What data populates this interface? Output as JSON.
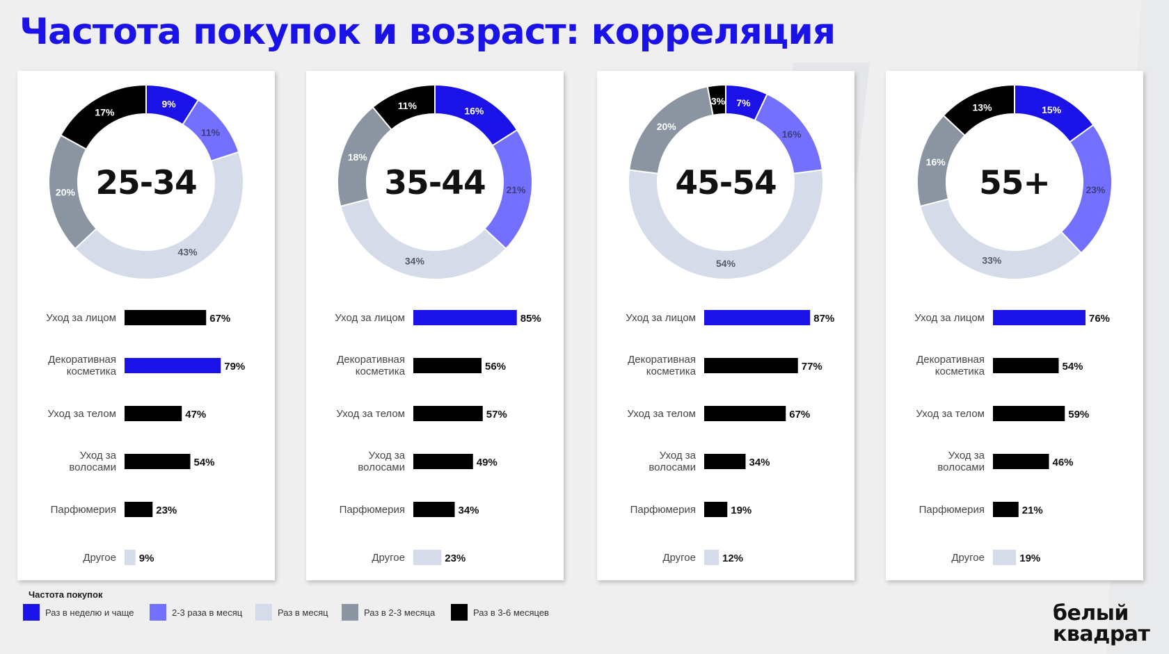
{
  "title": "Частота покупок и возраст: корреляция",
  "colors": {
    "weekly": "#1a12e6",
    "monthly_2_3": "#7470ff",
    "monthly": "#d5dbe8",
    "months_2_3": "#8b95a2",
    "months_3_6": "#000000"
  },
  "chart_data": [
    {
      "type": "donut",
      "center_label": "25-34",
      "slices": [
        {
          "key": "weekly",
          "value": 9,
          "label": "9%"
        },
        {
          "key": "monthly_2_3",
          "value": 11,
          "label": "11%"
        },
        {
          "key": "monthly",
          "value": 43,
          "label": "43%"
        },
        {
          "key": "months_2_3",
          "value": 20,
          "label": "20%"
        },
        {
          "key": "months_3_6",
          "value": 17,
          "label": "17%"
        }
      ],
      "bars": [
        {
          "category": [
            "Уход за лицом"
          ],
          "value": 67,
          "label": "67%",
          "color": "#000000"
        },
        {
          "category": [
            "Декоративная",
            "косметика"
          ],
          "value": 79,
          "label": "79%",
          "color": "#1a12e6"
        },
        {
          "category": [
            "Уход за телом"
          ],
          "value": 47,
          "label": "47%",
          "color": "#000000"
        },
        {
          "category": [
            "Уход за",
            "волосами"
          ],
          "value": 54,
          "label": "54%",
          "color": "#000000"
        },
        {
          "category": [
            "Парфюмерия"
          ],
          "value": 23,
          "label": "23%",
          "color": "#000000"
        },
        {
          "category": [
            "Другое"
          ],
          "value": 9,
          "label": "9%",
          "color": "#d5dbe8"
        }
      ]
    },
    {
      "type": "donut",
      "center_label": "35-44",
      "slices": [
        {
          "key": "weekly",
          "value": 16,
          "label": "16%"
        },
        {
          "key": "monthly_2_3",
          "value": 21,
          "label": "21%"
        },
        {
          "key": "monthly",
          "value": 34,
          "label": "34%"
        },
        {
          "key": "months_2_3",
          "value": 18,
          "label": "18%"
        },
        {
          "key": "months_3_6",
          "value": 11,
          "label": "11%"
        }
      ],
      "bars": [
        {
          "category": [
            "Уход за лицом"
          ],
          "value": 85,
          "label": "85%",
          "color": "#1a12e6"
        },
        {
          "category": [
            "Декоративная",
            "косметика"
          ],
          "value": 56,
          "label": "56%",
          "color": "#000000"
        },
        {
          "category": [
            "Уход за телом"
          ],
          "value": 57,
          "label": "57%",
          "color": "#000000"
        },
        {
          "category": [
            "Уход за",
            "волосами"
          ],
          "value": 49,
          "label": "49%",
          "color": "#000000"
        },
        {
          "category": [
            "Парфюмерия"
          ],
          "value": 34,
          "label": "34%",
          "color": "#000000"
        },
        {
          "category": [
            "Другое"
          ],
          "value": 23,
          "label": "23%",
          "color": "#d5dbe8"
        }
      ]
    },
    {
      "type": "donut",
      "center_label": "45-54",
      "slices": [
        {
          "key": "weekly",
          "value": 7,
          "label": "7%"
        },
        {
          "key": "monthly_2_3",
          "value": 16,
          "label": "16%"
        },
        {
          "key": "monthly",
          "value": 54,
          "label": "54%"
        },
        {
          "key": "months_2_3",
          "value": 20,
          "label": "20%"
        },
        {
          "key": "months_3_6",
          "value": 3,
          "label": "3%"
        }
      ],
      "bars": [
        {
          "category": [
            "Уход за лицом"
          ],
          "value": 87,
          "label": "87%",
          "color": "#1a12e6"
        },
        {
          "category": [
            "Декоративная",
            "косметика"
          ],
          "value": 77,
          "label": "77%",
          "color": "#000000"
        },
        {
          "category": [
            "Уход за телом"
          ],
          "value": 67,
          "label": "67%",
          "color": "#000000"
        },
        {
          "category": [
            "Уход за",
            "волосами"
          ],
          "value": 34,
          "label": "34%",
          "color": "#000000"
        },
        {
          "category": [
            "Парфюмерия"
          ],
          "value": 19,
          "label": "19%",
          "color": "#000000"
        },
        {
          "category": [
            "Другое"
          ],
          "value": 12,
          "label": "12%",
          "color": "#d5dbe8"
        }
      ]
    },
    {
      "type": "donut",
      "center_label": "55+",
      "slices": [
        {
          "key": "weekly",
          "value": 15,
          "label": "15%"
        },
        {
          "key": "monthly_2_3",
          "value": 23,
          "label": "23%"
        },
        {
          "key": "monthly",
          "value": 33,
          "label": "33%"
        },
        {
          "key": "months_2_3",
          "value": 16,
          "label": "16%"
        },
        {
          "key": "months_3_6",
          "value": 13,
          "label": "13%"
        }
      ],
      "bars": [
        {
          "category": [
            "Уход за лицом"
          ],
          "value": 76,
          "label": "76%",
          "color": "#1a12e6"
        },
        {
          "category": [
            "Декоративная",
            "косметика"
          ],
          "value": 54,
          "label": "54%",
          "color": "#000000"
        },
        {
          "category": [
            "Уход за телом"
          ],
          "value": 59,
          "label": "59%",
          "color": "#000000"
        },
        {
          "category": [
            "Уход за",
            "волосами"
          ],
          "value": 46,
          "label": "46%",
          "color": "#000000"
        },
        {
          "category": [
            "Парфюмерия"
          ],
          "value": 21,
          "label": "21%",
          "color": "#000000"
        },
        {
          "category": [
            "Другое"
          ],
          "value": 19,
          "label": "19%",
          "color": "#d5dbe8"
        }
      ]
    }
  ],
  "legend": {
    "title": "Частота покупок",
    "items": [
      {
        "key": "weekly",
        "label": "Раз в неделю и чаще"
      },
      {
        "key": "monthly_2_3",
        "label": "2-3 раза в месяц"
      },
      {
        "key": "monthly",
        "label": "Раз в месяц"
      },
      {
        "key": "months_2_3",
        "label": "Раз в 2-3 месяца"
      },
      {
        "key": "months_3_6",
        "label": "Раз в 3-6 месяцев"
      }
    ]
  },
  "logo": {
    "line1": "белый",
    "line2": "квадрат"
  }
}
